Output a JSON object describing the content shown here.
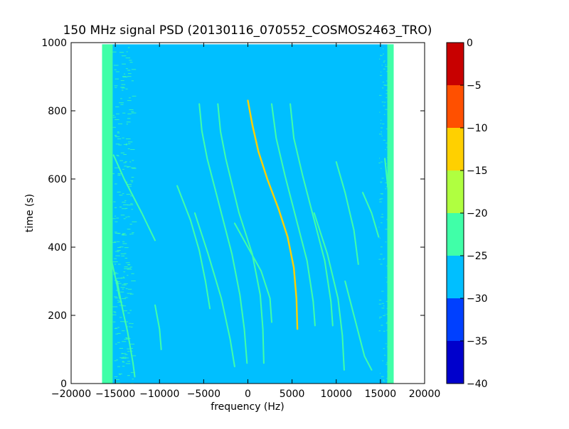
{
  "chart_data": {
    "type": "heatmap",
    "title": "150 MHz signal PSD (20130116_070552_COSMOS2463_TRO)",
    "xlabel": "frequency (Hz)",
    "ylabel": "time (s)",
    "xlim": [
      -20000,
      20000
    ],
    "ylim": [
      0,
      1000
    ],
    "x_ticks": [
      -20000,
      -15000,
      -10000,
      -5000,
      0,
      5000,
      10000,
      15000,
      20000
    ],
    "x_tick_labels": [
      "−20000",
      "−15000",
      "−10000",
      "−5000",
      "0",
      "5000",
      "10000",
      "15000",
      "20000"
    ],
    "y_ticks": [
      0,
      200,
      400,
      600,
      800,
      1000
    ],
    "y_tick_labels": [
      "0",
      "200",
      "400",
      "600",
      "800",
      "1000"
    ],
    "data_extent_x": [
      -16500,
      16500
    ],
    "data_extent_y": [
      0,
      995
    ],
    "background_level": -27.5,
    "edge_level": -22.5,
    "edge_band_width_hz": 1200,
    "colorbar": {
      "levels": [
        -40,
        -35,
        -30,
        -25,
        -20,
        -15,
        -10,
        -5,
        0
      ],
      "tick_labels": [
        "−40",
        "−35",
        "−30",
        "−25",
        "−20",
        "−15",
        "−10",
        "−5",
        "0"
      ],
      "colors": [
        "#0000cc",
        "#0040ff",
        "#00bfff",
        "#40ffa8",
        "#b0ff40",
        "#ffd000",
        "#ff5000",
        "#c80000"
      ]
    },
    "traces": [
      {
        "level": -12.5,
        "points": [
          [
            0,
            830
          ],
          [
            500,
            760
          ],
          [
            1200,
            680
          ],
          [
            2200,
            600
          ],
          [
            3500,
            510
          ],
          [
            4500,
            430
          ],
          [
            5200,
            340
          ],
          [
            5500,
            250
          ],
          [
            5600,
            160
          ]
        ]
      },
      {
        "level": -22.5,
        "points": [
          [
            -16000,
            430
          ],
          [
            -15500,
            370
          ],
          [
            -14900,
            300
          ],
          [
            -14500,
            250
          ]
        ]
      },
      {
        "level": -22.5,
        "points": [
          [
            -14800,
            300
          ],
          [
            -14200,
            220
          ],
          [
            -13600,
            150
          ],
          [
            -13000,
            60
          ],
          [
            -12800,
            20
          ]
        ]
      },
      {
        "level": -22.5,
        "points": [
          [
            -15200,
            670
          ],
          [
            -14000,
            600
          ],
          [
            -12000,
            500
          ],
          [
            -10500,
            420
          ]
        ]
      },
      {
        "level": -22.5,
        "points": [
          [
            -10500,
            230
          ],
          [
            -10000,
            160
          ],
          [
            -9800,
            100
          ]
        ]
      },
      {
        "level": -22.5,
        "points": [
          [
            -8000,
            580
          ],
          [
            -6500,
            480
          ],
          [
            -5500,
            390
          ],
          [
            -4800,
            300
          ],
          [
            -4300,
            220
          ]
        ]
      },
      {
        "level": -22.5,
        "points": [
          [
            -5500,
            820
          ],
          [
            -5200,
            740
          ],
          [
            -4600,
            660
          ],
          [
            -3000,
            500
          ],
          [
            -1800,
            380
          ],
          [
            -900,
            260
          ],
          [
            -400,
            160
          ],
          [
            -100,
            60
          ]
        ]
      },
      {
        "level": -22.5,
        "points": [
          [
            -3400,
            820
          ],
          [
            -3100,
            740
          ],
          [
            -2500,
            660
          ],
          [
            -1000,
            500
          ],
          [
            500,
            380
          ],
          [
            1400,
            260
          ],
          [
            1700,
            160
          ],
          [
            1800,
            60
          ]
        ]
      },
      {
        "level": -22.5,
        "points": [
          [
            -6000,
            500
          ],
          [
            -4500,
            380
          ],
          [
            -3000,
            250
          ],
          [
            -2000,
            130
          ],
          [
            -1500,
            50
          ]
        ]
      },
      {
        "level": -22.5,
        "points": [
          [
            -1500,
            470
          ],
          [
            0,
            400
          ],
          [
            1500,
            330
          ],
          [
            2500,
            250
          ],
          [
            2700,
            180
          ]
        ]
      },
      {
        "level": -22.5,
        "points": [
          [
            2700,
            820
          ],
          [
            3200,
            720
          ],
          [
            4200,
            610
          ],
          [
            5500,
            480
          ],
          [
            6700,
            360
          ],
          [
            7400,
            240
          ],
          [
            7600,
            170
          ]
        ]
      },
      {
        "level": -22.5,
        "points": [
          [
            4800,
            820
          ],
          [
            5200,
            720
          ],
          [
            6200,
            610
          ],
          [
            7500,
            480
          ],
          [
            8700,
            360
          ],
          [
            9400,
            240
          ],
          [
            9600,
            170
          ]
        ]
      },
      {
        "level": -22.5,
        "points": [
          [
            7500,
            500
          ],
          [
            9000,
            380
          ],
          [
            10200,
            250
          ],
          [
            10700,
            140
          ],
          [
            10900,
            40
          ]
        ]
      },
      {
        "level": -22.5,
        "points": [
          [
            10000,
            650
          ],
          [
            11000,
            560
          ],
          [
            12000,
            450
          ],
          [
            12500,
            350
          ]
        ]
      },
      {
        "level": -22.5,
        "points": [
          [
            11000,
            300
          ],
          [
            11500,
            250
          ],
          [
            12500,
            150
          ],
          [
            13200,
            80
          ],
          [
            14000,
            40
          ]
        ]
      },
      {
        "level": -22.5,
        "points": [
          [
            13000,
            560
          ],
          [
            14000,
            500
          ],
          [
            14800,
            430
          ]
        ]
      },
      {
        "level": -22.5,
        "points": [
          [
            15500,
            660
          ],
          [
            15900,
            560
          ],
          [
            16000,
            460
          ]
        ]
      }
    ]
  }
}
